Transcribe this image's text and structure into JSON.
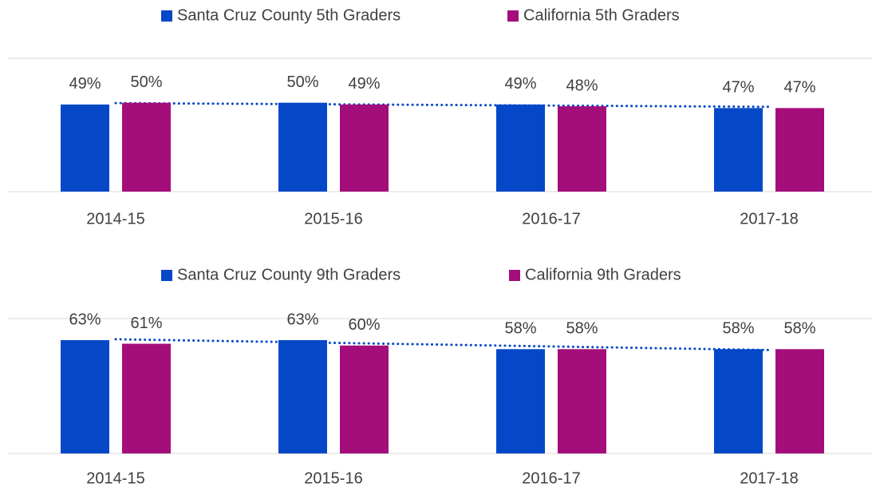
{
  "chart_data": [
    {
      "type": "bar",
      "categories": [
        "2014-15",
        "2015-16",
        "2016-17",
        "2017-18"
      ],
      "series": [
        {
          "name": "Santa Cruz County 5th Graders",
          "color": "#0448c7",
          "values": [
            49,
            50,
            49,
            47
          ],
          "value_labels": [
            "49%",
            "50%",
            "49%",
            "47%"
          ],
          "trendline": "linear"
        },
        {
          "name": "California 5th Graders",
          "color": "#a40e7a",
          "values": [
            50,
            49,
            48,
            47
          ],
          "value_labels": [
            "50%",
            "49%",
            "48%",
            "47%"
          ]
        }
      ],
      "ylim": [
        0,
        75
      ],
      "legend": "top"
    },
    {
      "type": "bar",
      "categories": [
        "2014-15",
        "2015-16",
        "2016-17",
        "2017-18"
      ],
      "series": [
        {
          "name": "Santa Cruz County 9th Graders",
          "color": "#0448c7",
          "values": [
            63,
            63,
            58,
            58
          ],
          "value_labels": [
            "63%",
            "63%",
            "58%",
            "58%"
          ],
          "trendline": "linear"
        },
        {
          "name": "California 9th Graders",
          "color": "#a40e7a",
          "values": [
            61,
            60,
            58,
            58
          ],
          "value_labels": [
            "61%",
            "60%",
            "58%",
            "58%"
          ]
        }
      ],
      "ylim": [
        0,
        75
      ],
      "legend": "top"
    }
  ]
}
